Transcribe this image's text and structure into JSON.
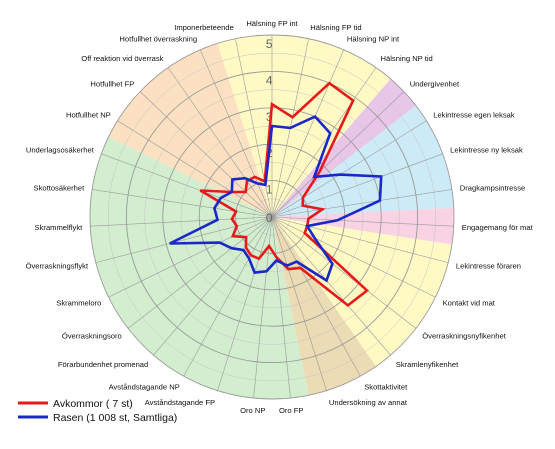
{
  "chart_data": {
    "type": "radar",
    "title": "",
    "scale": {
      "min": 0,
      "max": 5,
      "ticks": [
        0,
        1,
        2,
        3,
        4,
        5
      ]
    },
    "categories": [
      "Hälsning FP int",
      "Hälsning FP tid",
      "Hälsning NP int",
      "Hälsning NP tid",
      "Undergivenhet",
      "Lekintresse egen leksak",
      "Lekintresse ny leksak",
      "Dragkampsintresse",
      "Engagemang för mat",
      "Lekintresse föraren",
      "Kontakt vid mat",
      "Överraskningsnyfikenhet",
      "Skramlenyfikenhet",
      "Skottaktivitet",
      "Undersökning av annat",
      "Oro FP",
      "Oro NP",
      "Avståndstagande FP",
      "Avståndstagande NP",
      "Förarbundenhet promenad",
      "Överraskningsoro",
      "Skrammeloro",
      "Överraskningsflykt",
      "Skrammelflykt",
      "Skottosäkerhet",
      "Underlagsosäkerhet",
      "Hotfullhet NP",
      "Hotfullhet FP",
      "Off reaktion vid överrask",
      "Hotfullhet överraskning",
      "Imponerbeteende"
    ],
    "sectors": [
      {
        "from": 0,
        "to": 3,
        "color": "#fff9c4"
      },
      {
        "from": 4,
        "to": 4,
        "color": "#e7c6e7"
      },
      {
        "from": 5,
        "to": 7,
        "color": "#cdebf6"
      },
      {
        "from": 8,
        "to": 8,
        "color": "#f9d2e4"
      },
      {
        "from": 9,
        "to": 12,
        "color": "#fff9c4"
      },
      {
        "from": 13,
        "to": 14,
        "color": "#ecdcb5"
      },
      {
        "from": 15,
        "to": 25,
        "color": "#d2eecf"
      },
      {
        "from": 26,
        "to": 29,
        "color": "#fbe1c2"
      },
      {
        "from": 30,
        "to": 30,
        "color": "#fff9c4"
      }
    ],
    "series": [
      {
        "name": "Avkommor ( 7 st)",
        "color": "#e8191a",
        "values": [
          3.1,
          2.8,
          4.0,
          3.9,
          1.8,
          1.0,
          0.9,
          1.4,
          1.0,
          1.0,
          1.0,
          3.3,
          3.2,
          1.6,
          1.5,
          1.1,
          0.8,
          1.2,
          1.2,
          1.1,
          0.9,
          1.2,
          1.0,
          1.1,
          1.0,
          2.1,
          1.3,
          1.0,
          1.2,
          1.2,
          1.0
        ]
      },
      {
        "name": "Rasen (1 008 st, Samtliga)",
        "color": "#1a28c8",
        "values": [
          2.5,
          2.5,
          3.0,
          2.8,
          1.6,
          2.2,
          3.2,
          3.0,
          1.8,
          1.0,
          1.3,
          2.1,
          2.3,
          1.4,
          1.4,
          1.2,
          1.5,
          1.6,
          1.3,
          1.2,
          1.4,
          1.6,
          2.9,
          1.5,
          1.6,
          1.5,
          1.3,
          1.5,
          1.3,
          1.0,
          0.9
        ]
      }
    ],
    "legend_position": "bottom-left",
    "grid": true
  }
}
